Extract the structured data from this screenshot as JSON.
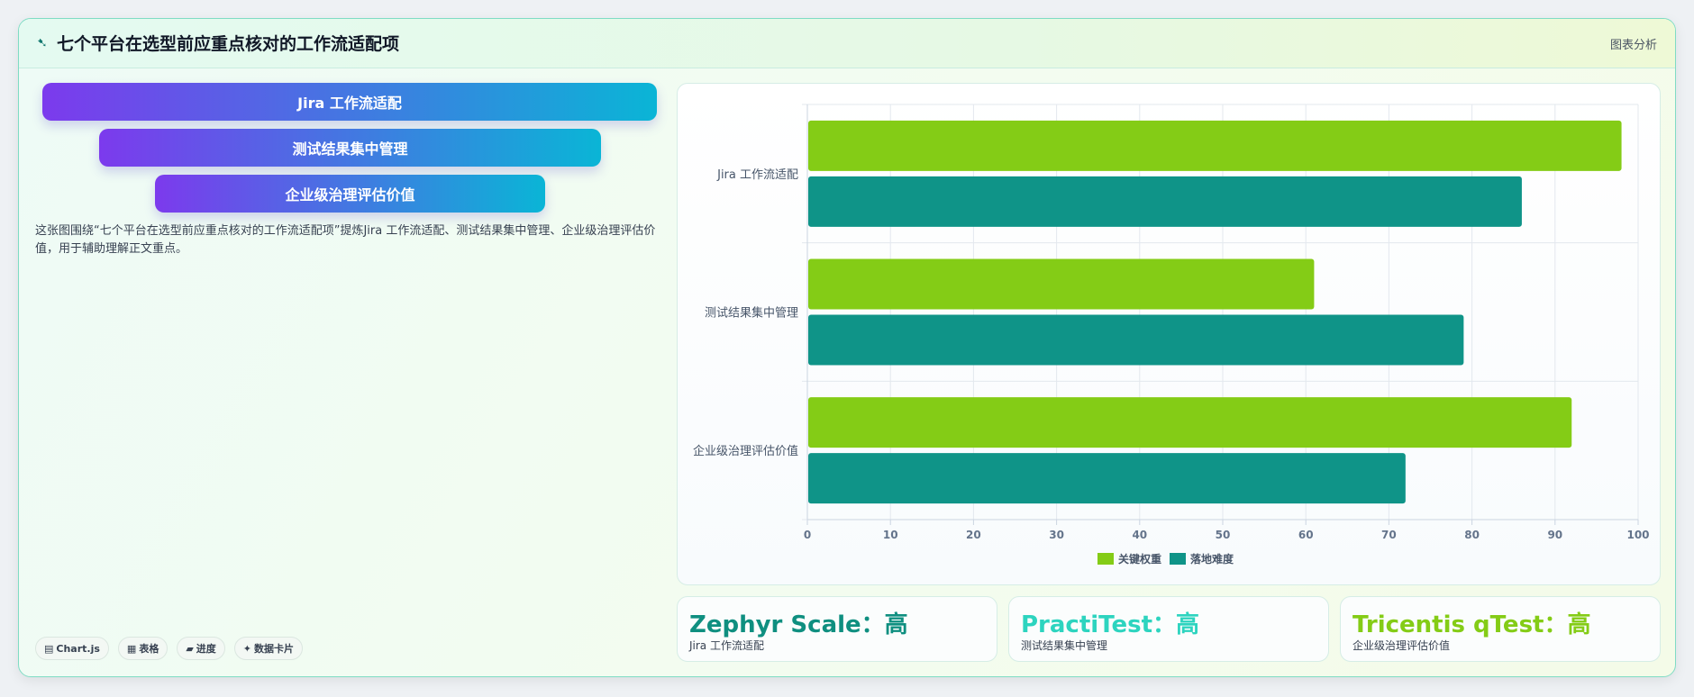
{
  "header": {
    "icon": "leaf-icon",
    "title": "七个平台在选型前应重点核对的工作流适配项",
    "action_label": "图表分析"
  },
  "funnel": [
    "Jira 工作流适配",
    "测试结果集中管理",
    "企业级治理评估价值"
  ],
  "description": "这张图围绕“七个平台在选型前应重点核对的工作流适配项”提炼Jira 工作流适配、测试结果集中管理、企业级治理评估价值，用于辅助理解正文重点。",
  "tags": [
    {
      "icon": "chart-icon",
      "glyph": "▤",
      "label": "Chart.js"
    },
    {
      "icon": "table-icon",
      "glyph": "▦",
      "label": "表格"
    },
    {
      "icon": "progress-icon",
      "glyph": "▰",
      "label": "进度"
    },
    {
      "icon": "card-icon",
      "glyph": "✦",
      "label": "数据卡片"
    }
  ],
  "stat_cards": [
    {
      "value": "Zephyr Scale：高",
      "label": "Jira 工作流适配",
      "color": "#0f8f80"
    },
    {
      "value": "PractiTest：高",
      "label": "测试结果集中管理",
      "color": "#2dd4bf"
    },
    {
      "value": "Tricentis qTest：高",
      "label": "企业级治理评估价值",
      "color": "#84cc16"
    }
  ],
  "chart_data": {
    "type": "bar",
    "orientation": "horizontal",
    "categories": [
      "Jira 工作流适配",
      "测试结果集中管理",
      "企业级治理评估价值"
    ],
    "series": [
      {
        "name": "关键权重",
        "values": [
          98,
          61,
          92
        ],
        "color": "#84cc16"
      },
      {
        "name": "落地难度",
        "values": [
          86,
          79,
          72
        ],
        "color": "#0f9488"
      }
    ],
    "xlim": [
      0,
      100
    ],
    "xticks": [
      0,
      10,
      20,
      30,
      40,
      50,
      60,
      70,
      80,
      90,
      100
    ],
    "grid": true,
    "legend": "bottom"
  }
}
